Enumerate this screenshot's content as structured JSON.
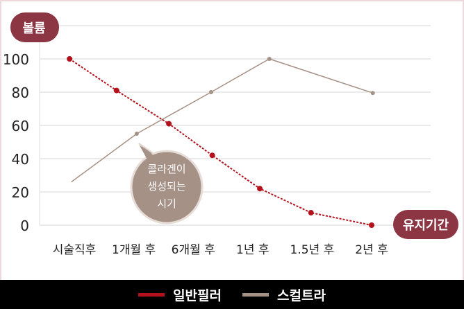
{
  "chart_data": {
    "type": "line",
    "ylabel": "볼륨",
    "xlabel": "유지기간",
    "categories": [
      "시술직후",
      "1개월 후",
      "6개월 후",
      "1년 후",
      "1.5년 후",
      "2년 후"
    ],
    "yticks": [
      0,
      20,
      40,
      60,
      80,
      100
    ],
    "ylim": [
      0,
      120
    ],
    "grid": true,
    "legend_position": "bottom",
    "series": [
      {
        "name": "일반필러",
        "color": "#b3121c",
        "style": "dotted",
        "x": [
          -0.08,
          0.71,
          1.59,
          2.32,
          3.12,
          3.98,
          5.0
        ],
        "values": [
          100,
          81,
          61,
          42,
          22,
          7.5,
          0
        ]
      },
      {
        "name": "스컬트라",
        "color": "#a69186",
        "style": "solid",
        "x": [
          -0.05,
          1.05,
          2.3,
          3.28,
          5.02
        ],
        "values": [
          26,
          55,
          80,
          100,
          79.5
        ]
      }
    ],
    "annotation": [
      "콜라겐이",
      "생성되는",
      "시기"
    ]
  }
}
